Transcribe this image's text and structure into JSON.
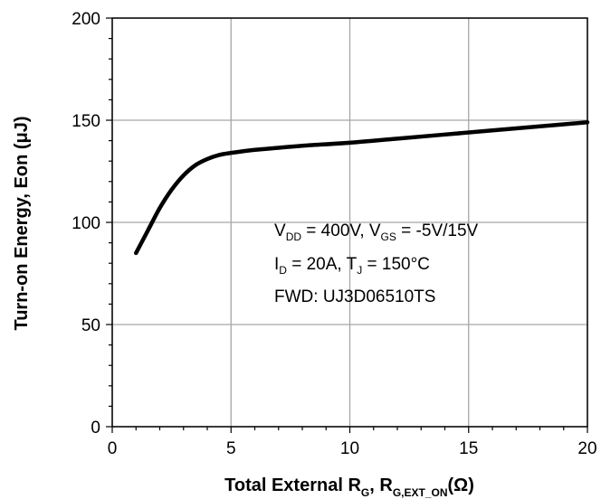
{
  "chart_data": {
    "type": "line",
    "xlabel": {
      "main": "Total External R",
      "sub1": "G",
      "sep": ", R",
      "sub2": "G,EXT_ON",
      "unit": "(Ω)"
    },
    "ylabel": "Turn-on Energy, Eon (μJ)",
    "xlim": [
      0,
      20
    ],
    "ylim": [
      0,
      200
    ],
    "xticks": [
      "0",
      "5",
      "10",
      "15",
      "20"
    ],
    "yticks": [
      "0",
      "50",
      "100",
      "150",
      "200"
    ],
    "grid": true,
    "series": [
      {
        "x": [
          1,
          1.5,
          2,
          2.5,
          3,
          3.5,
          4,
          4.5,
          5,
          6,
          7,
          8,
          10,
          12,
          14,
          16,
          18,
          20
        ],
        "y": [
          85,
          96,
          107,
          116,
          123,
          128,
          131,
          133,
          134,
          135.5,
          136.5,
          137.5,
          139,
          141,
          143,
          145,
          147,
          149
        ]
      }
    ],
    "annotation": {
      "line1": {
        "a": "V",
        "a_sub": "DD",
        "b": " = 400V, V",
        "b_sub": "GS",
        "c": " = -5V/15V"
      },
      "line2": {
        "a": "I",
        "a_sub": "D",
        "b": " = 20A, T",
        "b_sub": "J",
        "c": " = 150°C"
      },
      "line3": "FWD: UJ3D06510TS"
    },
    "colors": {
      "line": "#000000",
      "grid": "#a6a6a6",
      "axis": "#000000"
    }
  }
}
